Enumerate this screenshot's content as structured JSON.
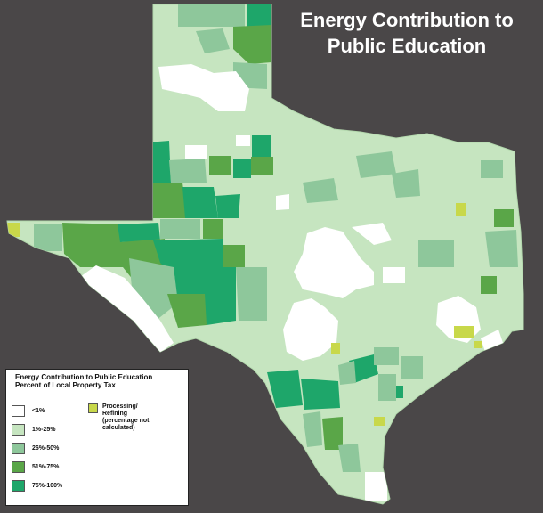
{
  "title": {
    "line1": "Energy Contribution to",
    "line2": "Public Education"
  },
  "legend": {
    "heading1": "Energy Contribution to Public Education",
    "heading2": "Percent of Local Property Tax",
    "items": [
      {
        "label": "<1%",
        "color": "#ffffff"
      },
      {
        "label": "1%-25%",
        "color": "#c6e5c0"
      },
      {
        "label": "26%-50%",
        "color": "#8ec79b"
      },
      {
        "label": "51%-75%",
        "color": "#5aa648"
      },
      {
        "label": "75%-100%",
        "color": "#1ea66a"
      }
    ],
    "processing": {
      "label": "Processing/ Refining (percentage not calculated)",
      "color": "#c8d84a"
    }
  },
  "colors": {
    "background": "#4a4748",
    "base": "#c6e5c0",
    "low": "#ffffff",
    "mid": "#8ec79b",
    "high": "#5aa648",
    "top": "#1ea66a",
    "processing": "#c8d84a"
  }
}
